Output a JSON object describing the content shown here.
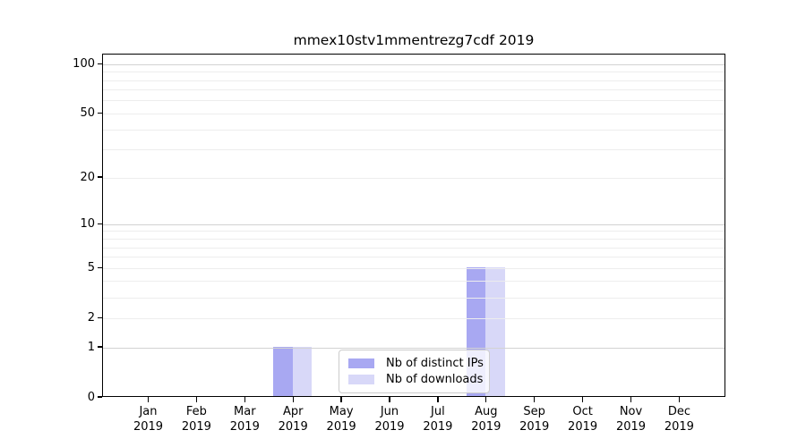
{
  "figure_title": "mmex10stv1mmentrezg7cdf 2019",
  "chart_data": {
    "type": "bar",
    "title": "mmex10stv1mmentrezg7cdf 2019",
    "categories": [
      "Jan",
      "Feb",
      "Mar",
      "Apr",
      "May",
      "Jun",
      "Jul",
      "Aug",
      "Sep",
      "Oct",
      "Nov",
      "Dec"
    ],
    "x_year": "2019",
    "series": [
      {
        "name": "Nb of distinct IPs",
        "color": "#a8a8f2",
        "values": [
          0,
          0,
          0,
          1,
          0,
          0,
          0,
          5,
          0,
          0,
          0,
          0
        ]
      },
      {
        "name": "Nb of downloads",
        "color": "#d8d8f8",
        "values": [
          0,
          0,
          0,
          1,
          0,
          0,
          0,
          5,
          0,
          0,
          0,
          0
        ]
      }
    ],
    "xlabel": "",
    "ylabel": "",
    "y_scale": "log10(value+1)",
    "ylim": [
      0,
      115
    ],
    "y_ticks": [
      0,
      1,
      2,
      5,
      10,
      20,
      50,
      100
    ],
    "y_major_gridlines": [
      1,
      10,
      100
    ],
    "y_minor_gridlines": [
      2,
      3,
      4,
      5,
      6,
      7,
      8,
      9,
      20,
      30,
      40,
      50,
      60,
      70,
      80,
      90
    ],
    "grid": true,
    "legend_position": "inside lower center-right"
  }
}
